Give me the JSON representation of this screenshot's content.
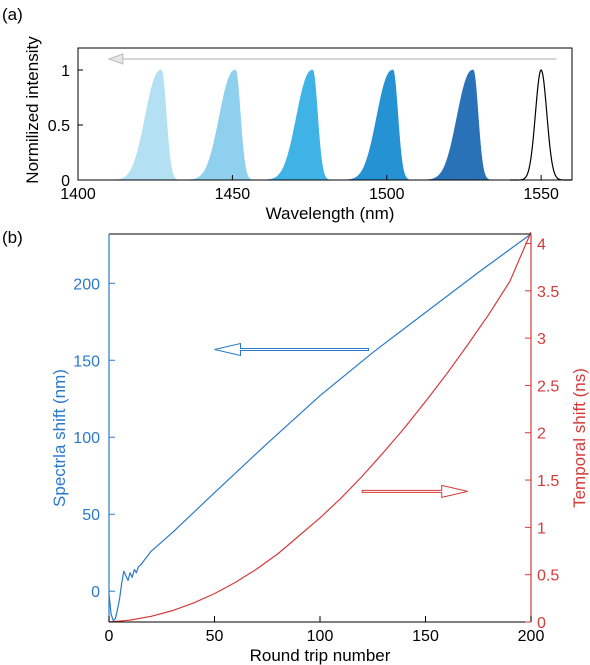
{
  "chart_data": [
    {
      "panel_label": "(a)",
      "type": "area",
      "xlabel": "Wavelength (nm)",
      "ylabel": "Normilized intensity",
      "xlim": [
        1400,
        1560
      ],
      "ylim": [
        0,
        1.2
      ],
      "x_ticks": [
        1400,
        1450,
        1500,
        1550
      ],
      "x_tick_labels": [
        "1400",
        "1450",
        "1500",
        "1550"
      ],
      "y_ticks": [
        0,
        0.5,
        1
      ],
      "y_tick_labels": [
        "0",
        "0.5",
        "1"
      ],
      "arrow": {
        "direction": "left",
        "y": 1.1,
        "x_from": 1555,
        "x_to": 1410,
        "color": "#c8c8c8"
      },
      "series": [
        {
          "center": 1427,
          "peak": 1,
          "color": "#b3e0f2",
          "filled": true
        },
        {
          "center": 1451,
          "peak": 1,
          "color": "#8fd0ef",
          "filled": true
        },
        {
          "center": 1476,
          "peak": 1,
          "color": "#3fb3e6",
          "filled": true
        },
        {
          "center": 1502,
          "peak": 1,
          "color": "#2592d3",
          "filled": true
        },
        {
          "center": 1528,
          "peak": 1,
          "color": "#2a72b8",
          "filled": true
        },
        {
          "center": 1550,
          "peak": 1,
          "color": "#000000",
          "filled": false
        }
      ]
    },
    {
      "panel_label": "(b)",
      "type": "line",
      "xlabel": "Round trip number",
      "ylabel_left": "Spectrla shift (nm)",
      "ylabel_right": "Temporal shift (ns)",
      "xlim": [
        0,
        200
      ],
      "ylim_left": [
        -20,
        232
      ],
      "ylim_right": [
        0,
        4.1
      ],
      "x_ticks": [
        0,
        50,
        100,
        150,
        200
      ],
      "x_tick_labels": [
        "0",
        "50",
        "100",
        "150",
        "200"
      ],
      "y_left_ticks": [
        0,
        50,
        100,
        150,
        200
      ],
      "y_left_tick_labels": [
        "0",
        "50",
        "100",
        "150",
        "200"
      ],
      "y_right_ticks": [
        0,
        0.5,
        1,
        1.5,
        2,
        2.5,
        3,
        3.5,
        4
      ],
      "y_right_tick_labels": [
        "0",
        "0.5",
        "1",
        "1.5",
        "2",
        "2.5",
        "3",
        "3.5",
        "4"
      ],
      "colors": {
        "left": "#2a7ac9",
        "right": "#d63a3a"
      },
      "series": [
        {
          "axis": "left",
          "color": "#2a7ac9",
          "x": [
            0,
            1,
            2,
            3,
            4,
            5,
            6,
            7,
            8,
            9,
            10,
            11,
            12,
            13,
            14,
            15,
            20,
            30,
            50,
            75,
            100,
            125,
            150,
            175,
            200
          ],
          "y": [
            -2,
            -15,
            -19,
            -18,
            -12,
            -5,
            5,
            13,
            10,
            7,
            12,
            9,
            14,
            12,
            16,
            17,
            26,
            38,
            64,
            96,
            127,
            155,
            181,
            207,
            232
          ]
        },
        {
          "axis": "right",
          "color": "#d63a3a",
          "x": [
            0,
            10,
            20,
            30,
            40,
            50,
            60,
            70,
            80,
            90,
            100,
            110,
            120,
            130,
            140,
            150,
            160,
            170,
            180,
            190,
            200
          ],
          "y": [
            0,
            0.02,
            0.06,
            0.12,
            0.2,
            0.3,
            0.42,
            0.56,
            0.72,
            0.91,
            1.1,
            1.31,
            1.54,
            1.79,
            2.05,
            2.33,
            2.62,
            2.93,
            3.25,
            3.6,
            4.12
          ]
        }
      ],
      "arrows": [
        {
          "axis": "left",
          "direction": "left",
          "x_from": 123,
          "x_to": 50,
          "y": 157,
          "color": "#2a7ac9"
        },
        {
          "axis": "right",
          "direction": "right",
          "x_from": 120,
          "x_to": 170,
          "y": 1.38,
          "color": "#d63a3a"
        }
      ]
    }
  ]
}
